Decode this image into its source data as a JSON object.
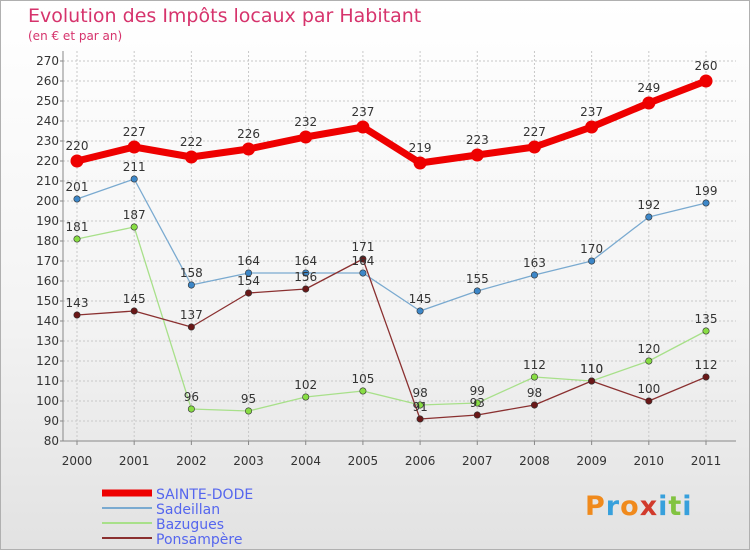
{
  "title": "Evolution des Impôts locaux par Habitant",
  "subtitle": "(en € et par an)",
  "logo_text": "Proxiti",
  "colors": {
    "title": "#d6336c",
    "axis_text": "#333333",
    "grid": "#c8c8c8",
    "axis": "#888888",
    "legend_text": "#5566ee"
  },
  "chart_data": {
    "type": "line",
    "title": "Evolution des Impôts locaux par Habitant",
    "subtitle": "(en € et par an)",
    "xlabel": "",
    "ylabel": "",
    "ylim": [
      80,
      270
    ],
    "yticks": [
      80,
      90,
      100,
      110,
      120,
      130,
      140,
      150,
      160,
      170,
      180,
      190,
      200,
      210,
      220,
      230,
      240,
      250,
      260,
      270
    ],
    "categories": [
      "2000",
      "2001",
      "2002",
      "2003",
      "2004",
      "2005",
      "2006",
      "2007",
      "2008",
      "2009",
      "2010",
      "2011"
    ],
    "grid": true,
    "legend_position": "bottom-left",
    "series": [
      {
        "name": "SAINTE-DODE",
        "color": "#ee0000",
        "point_color": "#ee0000",
        "thick": true,
        "values": [
          220,
          227,
          222,
          226,
          232,
          237,
          219,
          223,
          227,
          237,
          249,
          260
        ]
      },
      {
        "name": "Sadeillan",
        "color": "#7aaad0",
        "point_color": "#3d87c8",
        "thick": false,
        "values": [
          201,
          211,
          158,
          164,
          164,
          164,
          145,
          155,
          163,
          170,
          192,
          199
        ]
      },
      {
        "name": "Bazugues",
        "color": "#a8e08a",
        "point_color": "#88dd44",
        "thick": false,
        "values": [
          181,
          187,
          96,
          95,
          102,
          105,
          98,
          99,
          112,
          110,
          120,
          135
        ]
      },
      {
        "name": "Ponsampère",
        "color": "#8a3030",
        "point_color": "#6a1818",
        "thick": false,
        "values": [
          143,
          145,
          137,
          154,
          156,
          171,
          91,
          93,
          98,
          110,
          100,
          112
        ]
      }
    ]
  }
}
